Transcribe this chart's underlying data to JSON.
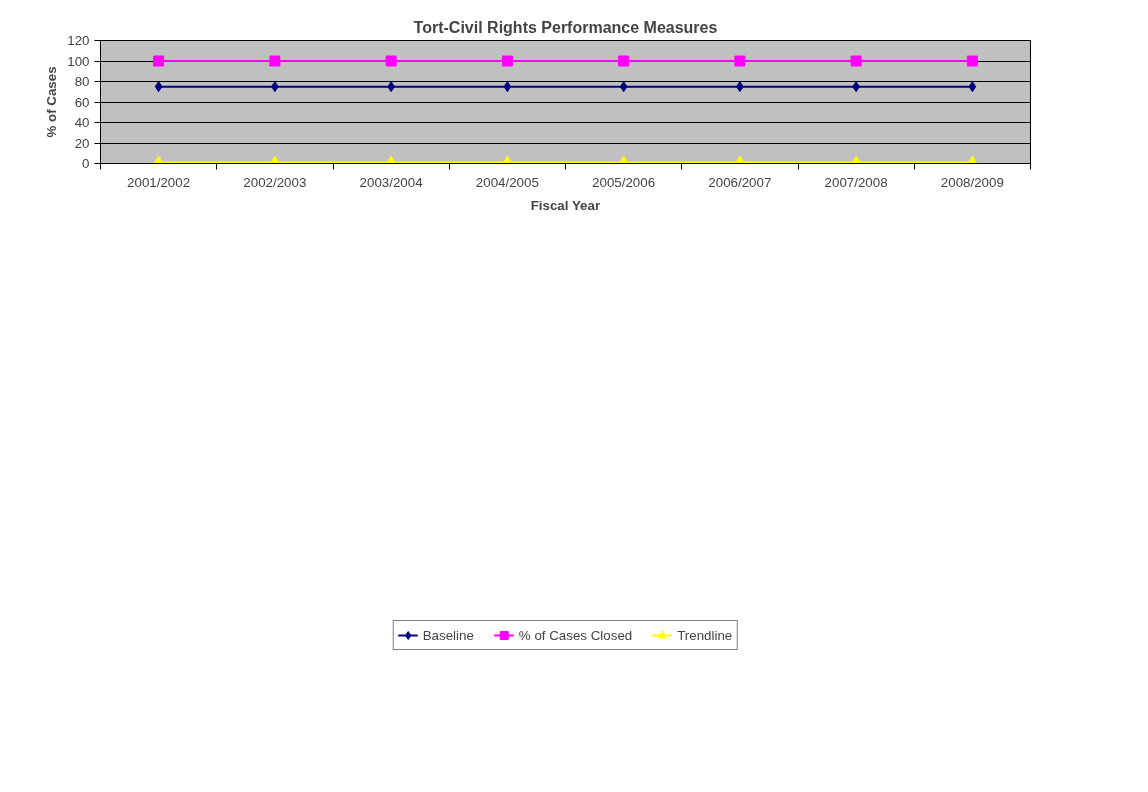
{
  "chart_data": {
    "type": "line",
    "title": "Tort-Civil Rights Performance Measures",
    "xlabel": "Fiscal Year",
    "ylabel": "% of Cases",
    "categories": [
      "2001/2002",
      "2002/2003",
      "2003/2004",
      "2004/2005",
      "2005/2006",
      "2006/2007",
      "2007/2008",
      "2008/2009"
    ],
    "series": [
      {
        "name": "Baseline",
        "color": "#000080",
        "marker": "diamond",
        "values": [
          75,
          75,
          75,
          75,
          75,
          75,
          75,
          75
        ]
      },
      {
        "name": "% of Cases Closed",
        "color": "#ff00ff",
        "marker": "square",
        "values": [
          100,
          100,
          100,
          100,
          100,
          100,
          100,
          100
        ]
      },
      {
        "name": "Trendline",
        "color": "#ffff00",
        "marker": "triangle",
        "values": [
          1,
          1,
          1,
          1,
          1,
          1,
          1,
          1
        ]
      }
    ],
    "ylim": [
      0,
      120
    ],
    "yticks": [
      0,
      20,
      40,
      60,
      80,
      100,
      120
    ],
    "grid": "y",
    "legend": "bottom",
    "line_style": "solid"
  }
}
